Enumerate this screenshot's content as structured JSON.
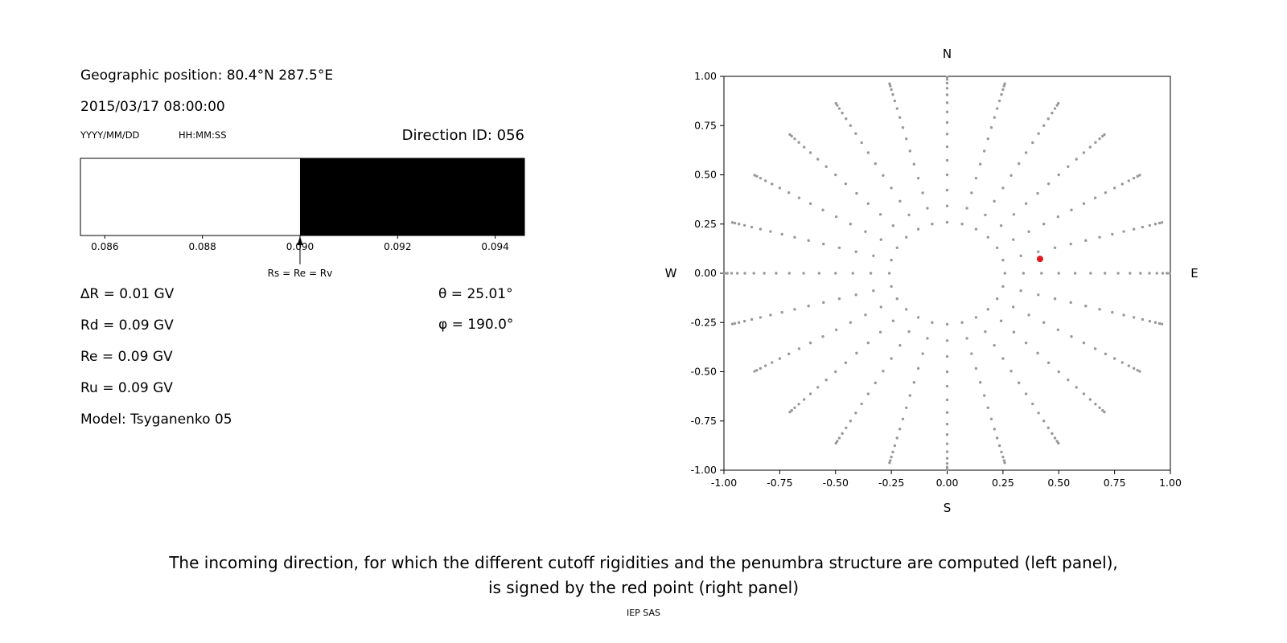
{
  "left_panel": {
    "geo_position": "Geographic position: 80.4°N 287.5°E",
    "datetime": "2015/03/17 08:00:00",
    "date_format_label": "YYYY/MM/DD",
    "time_format_label": "HH:MM:SS",
    "direction_id": "Direction ID: 056",
    "params": [
      "∆R = 0.01 GV",
      "Rd = 0.09 GV",
      "Re = 0.09 GV",
      "Ru = 0.09 GV",
      "Model: Tsyganenko 05"
    ],
    "theta": "θ = 25.01°",
    "phi": "φ = 190.0°"
  },
  "caption": {
    "line1": "The incoming direction, for which the different cutoff rigidities and the penumbra structure are computed (left panel),",
    "line2": "is signed by the red point (right panel)",
    "credit": "IEP SAS"
  },
  "chart_data": [
    {
      "type": "area",
      "name": "penumbra-structure",
      "x_range": [
        0.0855,
        0.0946
      ],
      "segments": [
        {
          "from": 0.0855,
          "to": 0.09,
          "color": "#ffffff"
        },
        {
          "from": 0.09,
          "to": 0.0946,
          "color": "#000000"
        }
      ],
      "x_ticks": [
        0.086,
        0.088,
        0.09,
        0.092,
        0.094
      ],
      "x_tick_labels": [
        "0.086",
        "0.088",
        "0.090",
        "0.092",
        "0.094"
      ],
      "annotation": {
        "x": 0.09,
        "label": "Rs = Re = Rv"
      }
    },
    {
      "type": "scatter",
      "name": "incoming-direction-map",
      "xlim": [
        -1.0,
        1.0
      ],
      "ylim": [
        -1.0,
        1.0
      ],
      "x_ticks": [
        -1.0,
        -0.75,
        -0.5,
        -0.25,
        0.0,
        0.25,
        0.5,
        0.75,
        1.0
      ],
      "x_tick_labels": [
        "-1.00",
        "-0.75",
        "-0.50",
        "-0.25",
        "0.00",
        "0.25",
        "0.50",
        "0.75",
        "1.00"
      ],
      "y_ticks": [
        1.0,
        0.75,
        0.5,
        0.25,
        0.0,
        -0.25,
        -0.5,
        -0.75,
        -1.0
      ],
      "y_tick_labels": [
        "1.00",
        "0.75",
        "0.50",
        "0.25",
        "0.00",
        "-0.25",
        "-0.50",
        "-0.75",
        "-1.00"
      ],
      "compass_labels": {
        "top": "N",
        "bottom": "S",
        "left": "W",
        "right": "E"
      },
      "grid_dots": {
        "azimuth_step_deg": 15,
        "zenith_deg": [
          15,
          20,
          25,
          30,
          35,
          40,
          45,
          50,
          55,
          60,
          65,
          70,
          75,
          80,
          85
        ],
        "radius_rule": "sin(zenith)",
        "color": "#999999"
      },
      "red_point": {
        "x": 0.416,
        "y": 0.073,
        "color": "#e01a1a"
      }
    }
  ]
}
